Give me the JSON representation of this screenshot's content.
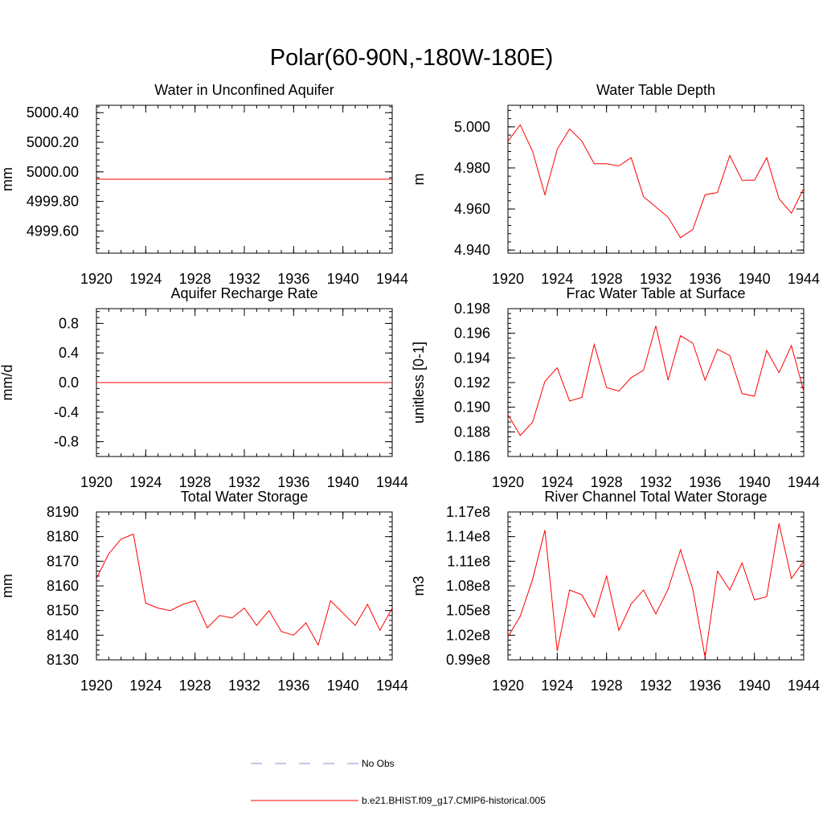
{
  "page": {
    "title": "Polar(60-90N,-180W-180E)"
  },
  "chart_data": [
    {
      "type": "line",
      "title": "Water in Unconfined Aquifer",
      "xlabel": "",
      "ylabel": "mm",
      "xlim": [
        1920,
        1944
      ],
      "ylim": [
        4999.45,
        5000.45
      ],
      "xticks": [
        1920,
        1924,
        1928,
        1932,
        1936,
        1940,
        1944
      ],
      "xtick_labels": [
        "1920",
        "1924",
        "1928",
        "1932",
        "1936",
        "1940",
        "1944"
      ],
      "yticks": [
        4999.6,
        4999.8,
        5000.0,
        5000.2,
        5000.4
      ],
      "ytick_labels": [
        "4999.60",
        "4999.80",
        "5000.00",
        "5000.20",
        "5000.40"
      ],
      "grid": false,
      "series": [
        {
          "name": "b.e21.BHIST.f09_g17.CMIP6-historical.005",
          "color": "#ff0000",
          "x": [
            1920,
            1921,
            1922,
            1923,
            1924,
            1925,
            1926,
            1927,
            1928,
            1929,
            1930,
            1931,
            1932,
            1933,
            1934,
            1935,
            1936,
            1937,
            1938,
            1939,
            1940,
            1941,
            1942,
            1943,
            1944
          ],
          "y": [
            4999.95,
            4999.95,
            4999.95,
            4999.95,
            4999.95,
            4999.95,
            4999.95,
            4999.95,
            4999.95,
            4999.95,
            4999.95,
            4999.95,
            4999.95,
            4999.95,
            4999.95,
            4999.95,
            4999.95,
            4999.95,
            4999.95,
            4999.95,
            4999.95,
            4999.95,
            4999.95,
            4999.95,
            4999.95
          ]
        }
      ]
    },
    {
      "type": "line",
      "title": "Water Table Depth",
      "xlabel": "",
      "ylabel": "m",
      "xlim": [
        1920,
        1944
      ],
      "ylim": [
        4.9385,
        5.0105
      ],
      "xticks": [
        1920,
        1924,
        1928,
        1932,
        1936,
        1940,
        1944
      ],
      "xtick_labels": [
        "1920",
        "1924",
        "1928",
        "1932",
        "1936",
        "1940",
        "1944"
      ],
      "yticks": [
        4.94,
        4.96,
        4.98,
        5.0
      ],
      "ytick_labels": [
        "4.940",
        "4.960",
        "4.980",
        "5.000"
      ],
      "grid": false,
      "series": [
        {
          "name": "b.e21.BHIST.f09_g17.CMIP6-historical.005",
          "color": "#ff0000",
          "x": [
            1920,
            1921,
            1922,
            1923,
            1924,
            1925,
            1926,
            1927,
            1928,
            1929,
            1930,
            1931,
            1932,
            1933,
            1934,
            1935,
            1936,
            1937,
            1938,
            1939,
            1940,
            1941,
            1942,
            1943,
            1944
          ],
          "y": [
            4.993,
            5.001,
            4.988,
            4.967,
            4.989,
            4.999,
            4.993,
            4.982,
            4.982,
            4.981,
            4.985,
            4.966,
            4.961,
            4.956,
            4.946,
            4.95,
            4.967,
            4.968,
            4.986,
            4.974,
            4.974,
            4.985,
            4.965,
            4.958,
            4.97
          ]
        }
      ]
    },
    {
      "type": "line",
      "title": "Aquifer Recharge Rate",
      "xlabel": "",
      "ylabel": "mm/d",
      "xlim": [
        1920,
        1944
      ],
      "ylim": [
        -1.0,
        1.0
      ],
      "xticks": [
        1920,
        1924,
        1928,
        1932,
        1936,
        1940,
        1944
      ],
      "xtick_labels": [
        "1920",
        "1924",
        "1928",
        "1932",
        "1936",
        "1940",
        "1944"
      ],
      "yticks": [
        -0.8,
        -0.4,
        0.0,
        0.4,
        0.8
      ],
      "ytick_labels": [
        "-0.8",
        "-0.4",
        "0.0",
        "0.4",
        "0.8"
      ],
      "grid": false,
      "series": [
        {
          "name": "b.e21.BHIST.f09_g17.CMIP6-historical.005",
          "color": "#ff0000",
          "x": [
            1920,
            1921,
            1922,
            1923,
            1924,
            1925,
            1926,
            1927,
            1928,
            1929,
            1930,
            1931,
            1932,
            1933,
            1934,
            1935,
            1936,
            1937,
            1938,
            1939,
            1940,
            1941,
            1942,
            1943,
            1944
          ],
          "y": [
            0,
            0,
            0,
            0,
            0,
            0,
            0,
            0,
            0,
            0,
            0,
            0,
            0,
            0,
            0,
            0,
            0,
            0,
            0,
            0,
            0,
            0,
            0,
            0,
            0
          ]
        }
      ]
    },
    {
      "type": "line",
      "title": "Frac Water Table at Surface",
      "xlabel": "",
      "ylabel": "unitless [0-1]",
      "xlim": [
        1920,
        1944
      ],
      "ylim": [
        0.186,
        0.198
      ],
      "xticks": [
        1920,
        1924,
        1928,
        1932,
        1936,
        1940,
        1944
      ],
      "xtick_labels": [
        "1920",
        "1924",
        "1928",
        "1932",
        "1936",
        "1940",
        "1944"
      ],
      "yticks": [
        0.186,
        0.188,
        0.19,
        0.192,
        0.194,
        0.196,
        0.198
      ],
      "ytick_labels": [
        "0.186",
        "0.188",
        "0.190",
        "0.192",
        "0.194",
        "0.196",
        "0.198"
      ],
      "grid": false,
      "series": [
        {
          "name": "b.e21.BHIST.f09_g17.CMIP6-historical.005",
          "color": "#ff0000",
          "x": [
            1920,
            1921,
            1922,
            1923,
            1924,
            1925,
            1926,
            1927,
            1928,
            1929,
            1930,
            1931,
            1932,
            1933,
            1934,
            1935,
            1936,
            1937,
            1938,
            1939,
            1940,
            1941,
            1942,
            1943,
            1944
          ],
          "y": [
            0.1894,
            0.1877,
            0.1888,
            0.1921,
            0.1932,
            0.1905,
            0.1908,
            0.1951,
            0.1916,
            0.1913,
            0.1924,
            0.193,
            0.1966,
            0.1922,
            0.1958,
            0.1952,
            0.1922,
            0.1947,
            0.1942,
            0.1911,
            0.1909,
            0.1946,
            0.1928,
            0.195,
            0.1913
          ]
        }
      ]
    },
    {
      "type": "line",
      "title": "Total Water Storage",
      "xlabel": "",
      "ylabel": "mm",
      "xlim": [
        1920,
        1944
      ],
      "ylim": [
        8130,
        8190
      ],
      "xticks": [
        1920,
        1924,
        1928,
        1932,
        1936,
        1940,
        1944
      ],
      "xtick_labels": [
        "1920",
        "1924",
        "1928",
        "1932",
        "1936",
        "1940",
        "1944"
      ],
      "yticks": [
        8130,
        8140,
        8150,
        8160,
        8170,
        8180,
        8190
      ],
      "ytick_labels": [
        "8130",
        "8140",
        "8150",
        "8160",
        "8170",
        "8180",
        "8190"
      ],
      "grid": false,
      "series": [
        {
          "name": "b.e21.BHIST.f09_g17.CMIP6-historical.005",
          "color": "#ff0000",
          "x": [
            1920,
            1921,
            1922,
            1923,
            1924,
            1925,
            1926,
            1927,
            1928,
            1929,
            1930,
            1931,
            1932,
            1933,
            1934,
            1935,
            1936,
            1937,
            1938,
            1939,
            1940,
            1941,
            1942,
            1943,
            1944
          ],
          "y": [
            8163,
            8173,
            8179,
            8181,
            8153,
            8151,
            8150,
            8152.5,
            8154,
            8143,
            8148,
            8147,
            8151,
            8144,
            8150,
            8141.5,
            8140,
            8145,
            8136,
            8154,
            8149,
            8144,
            8152.5,
            8142,
            8151
          ]
        }
      ]
    },
    {
      "type": "line",
      "title": "River Channel Total Water Storage",
      "xlabel": "",
      "ylabel": "m3",
      "xlim": [
        1920,
        1944
      ],
      "ylim": [
        99000000,
        117000000
      ],
      "xticks": [
        1920,
        1924,
        1928,
        1932,
        1936,
        1940,
        1944
      ],
      "xtick_labels": [
        "1920",
        "1924",
        "1928",
        "1932",
        "1936",
        "1940",
        "1944"
      ],
      "yticks": [
        99000000,
        102000000,
        105000000,
        108000000,
        111000000,
        114000000,
        117000000
      ],
      "ytick_labels": [
        "0.99e8",
        "1.02e8",
        "1.05e8",
        "1.08e8",
        "1.11e8",
        "1.14e8",
        "1.17e8"
      ],
      "grid": false,
      "series": [
        {
          "name": "b.e21.BHIST.f09_g17.CMIP6-historical.005",
          "color": "#ff0000",
          "x": [
            1920,
            1921,
            1922,
            1923,
            1924,
            1925,
            1926,
            1927,
            1928,
            1929,
            1930,
            1931,
            1932,
            1933,
            1934,
            1935,
            1936,
            1937,
            1938,
            1939,
            1940,
            1941,
            1942,
            1943,
            1944
          ],
          "y": [
            101800000,
            104300000,
            108800000,
            114800000,
            100100000,
            107500000,
            106900000,
            104200000,
            109200000,
            102600000,
            105800000,
            107500000,
            104600000,
            107600000,
            112400000,
            107600000,
            99300000,
            109800000,
            107500000,
            110800000,
            106300000,
            106700000,
            115600000,
            108900000,
            111000000
          ]
        }
      ]
    }
  ],
  "legend": {
    "entries": [
      {
        "label": "No Obs",
        "color": "#8c8cc8",
        "style": "dashed"
      },
      {
        "label": "b.e21.BHIST.f09_g17.CMIP6-historical.005",
        "color": "#ff0000",
        "style": "solid"
      }
    ]
  }
}
